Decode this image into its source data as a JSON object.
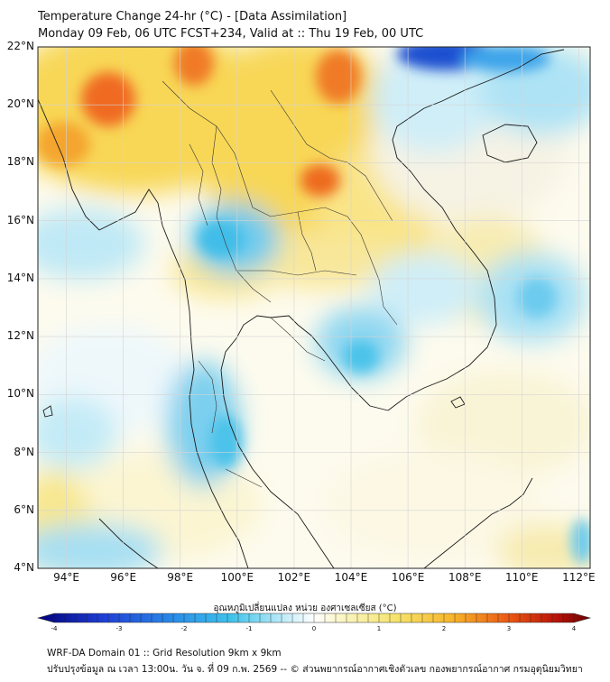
{
  "header": {
    "title_line1": "Temperature Change 24-hr (°C) - [Data Assimilation]",
    "title_line2": "Monday 09 Feb, 06 UTC FCST+234, Valid at :: Thu 19 Feb, 00 UTC"
  },
  "map": {
    "lat_labels": [
      "22°N",
      "20°N",
      "18°N",
      "16°N",
      "14°N",
      "12°N",
      "10°N",
      "8°N",
      "6°N",
      "4°N"
    ],
    "lon_labels": [
      "94°E",
      "96°E",
      "98°E",
      "100°E",
      "102°E",
      "104°E",
      "106°E",
      "108°E",
      "110°E",
      "112°E"
    ],
    "lat_range": [
      4,
      22
    ],
    "lon_range": [
      93,
      112.4
    ],
    "gridlines": true
  },
  "colorbar": {
    "title": "อุณหภูมิเปลี่ยนแปลง หน่วย องศาเซลเซียส (°C)",
    "ticks": [
      "-4",
      "-3",
      "-2",
      "-1",
      "0",
      "1",
      "2",
      "3",
      "4"
    ],
    "range": [
      -4,
      4
    ],
    "colors": {
      "min": "#00007a",
      "cold": "#1f5bd6",
      "cool": "#3ec3ea",
      "neutral": "#ffffff",
      "warm": "#f5e36a",
      "hot": "#f29a1e",
      "max": "#6b0000"
    }
  },
  "footer": {
    "line1": "WRF-DA Domain 01 :: Grid Resolution 9km x 9km",
    "line2": "ปรับปรุงข้อมูล ณ เวลา 13:00น. วัน จ. ที่ 09 ก.พ. 2569 -- © ส่วนพยากรณ์อากาศเชิงตัวเลข กองพยากรณ์อากาศ กรมอุตุนิยมวิทยา"
  }
}
